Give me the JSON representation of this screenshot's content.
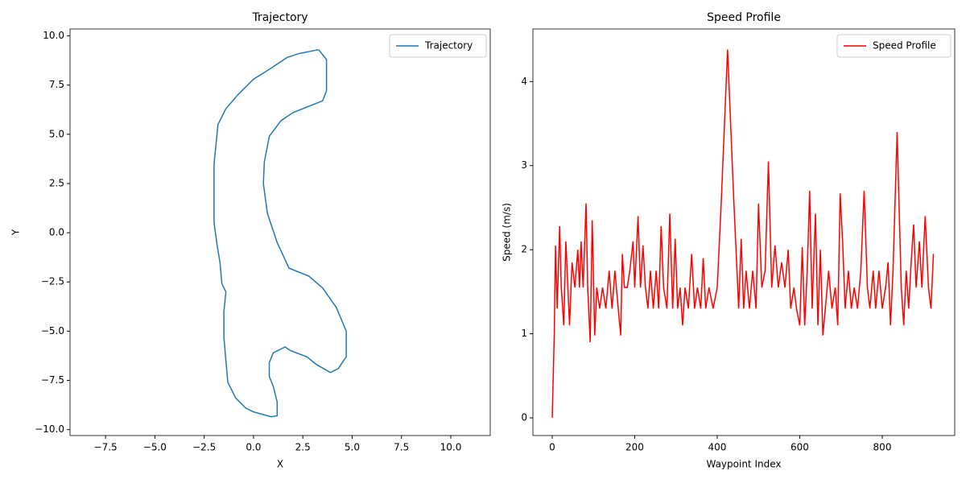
{
  "chart_data": [
    {
      "type": "line",
      "title": "Trajectory",
      "x_label": "X",
      "y_label": "Y",
      "x": [
        3.3,
        3.7,
        3.7,
        3.5,
        2.0,
        1.4,
        0.8,
        0.55,
        0.5,
        0.7,
        1.2,
        1.8,
        2.8,
        3.5,
        4.2,
        4.7,
        4.7,
        4.3,
        3.9,
        3.2,
        2.7,
        1.9,
        1.6,
        1.0,
        0.8,
        0.8,
        1.0,
        1.2,
        1.2,
        0.9,
        0.0,
        -0.4,
        -0.9,
        -1.3,
        -1.4,
        -1.5,
        -1.5,
        -1.4,
        -1.6,
        -1.7,
        -1.85,
        -2.0,
        -2.0,
        -2.0,
        -1.9,
        -1.8,
        -1.4,
        -0.8,
        0.0,
        0.8,
        1.7,
        2.3,
        3.3
      ],
      "series": [
        {
          "name": "Trajectory",
          "color": "#1f77b4",
          "values": [
            9.3,
            8.8,
            7.2,
            6.7,
            6.1,
            5.7,
            4.9,
            3.6,
            2.5,
            1.0,
            -0.5,
            -1.8,
            -2.2,
            -2.8,
            -3.8,
            -5.0,
            -6.3,
            -6.9,
            -7.1,
            -6.7,
            -6.3,
            -6.0,
            -5.8,
            -6.1,
            -6.6,
            -7.3,
            -7.8,
            -8.6,
            -9.3,
            -9.35,
            -9.1,
            -8.9,
            -8.4,
            -7.6,
            -6.5,
            -5.3,
            -4.0,
            -3.0,
            -2.6,
            -1.5,
            -0.6,
            0.5,
            1.0,
            3.5,
            4.5,
            5.5,
            6.3,
            7.0,
            7.8,
            8.3,
            8.9,
            9.1,
            9.3
          ]
        }
      ],
      "xlim": [
        -9.3,
        12.0
      ],
      "ylim": [
        -10.3,
        10.35
      ],
      "xticks": [
        {
          "value": -7.5,
          "label": "−7.5"
        },
        {
          "value": -5,
          "label": "−5.0"
        },
        {
          "value": -2.5,
          "label": "−2.5"
        },
        {
          "value": 0,
          "label": "0.0"
        },
        {
          "value": 2.5,
          "label": "2.5"
        },
        {
          "value": 5,
          "label": "5.0"
        },
        {
          "value": 7.5,
          "label": "7.5"
        },
        {
          "value": 10,
          "label": "10.0"
        }
      ],
      "yticks": [
        {
          "value": -10,
          "label": "−10.0"
        },
        {
          "value": -7.5,
          "label": "−7.5"
        },
        {
          "value": -5,
          "label": "−5.0"
        },
        {
          "value": -2.5,
          "label": "−2.5"
        },
        {
          "value": 0,
          "label": "0.0"
        },
        {
          "value": 2.5,
          "label": "2.5"
        },
        {
          "value": 5,
          "label": "5.0"
        },
        {
          "value": 7.5,
          "label": "7.5"
        },
        {
          "value": 10,
          "label": "10.0"
        }
      ],
      "legend": "upper right"
    },
    {
      "type": "line",
      "title": "Speed Profile",
      "x_label": "Waypoint Index",
      "y_label": "Speed (m/s)",
      "x": [
        0,
        5,
        8,
        12,
        18,
        22,
        28,
        33,
        38,
        42,
        48,
        55,
        62,
        66,
        70,
        75,
        82,
        86,
        92,
        97,
        103,
        108,
        115,
        122,
        130,
        138,
        145,
        152,
        160,
        166,
        170,
        175,
        182,
        188,
        196,
        200,
        208,
        214,
        220,
        226,
        232,
        238,
        245,
        252,
        258,
        264,
        270,
        278,
        285,
        292,
        298,
        304,
        310,
        316,
        322,
        330,
        338,
        345,
        352,
        360,
        366,
        372,
        380,
        390,
        400,
        410,
        425,
        440,
        452,
        458,
        464,
        470,
        478,
        486,
        494,
        500,
        508,
        516,
        524,
        532,
        540,
        548,
        556,
        564,
        572,
        578,
        586,
        592,
        600,
        606,
        612,
        618,
        624,
        630,
        638,
        644,
        650,
        656,
        662,
        670,
        678,
        686,
        692,
        698,
        704,
        710,
        718,
        725,
        732,
        740,
        748,
        756,
        764,
        770,
        778,
        784,
        792,
        800,
        808,
        814,
        820,
        826,
        836,
        846,
        852,
        858,
        864,
        870,
        876,
        882,
        890,
        896,
        904,
        912,
        918,
        924
      ],
      "series": [
        {
          "name": "Speed Profile",
          "color": "#ff0000",
          "values": [
            0,
            1.0,
            2.05,
            1.3,
            2.28,
            1.55,
            1.1,
            2.1,
            1.55,
            1.1,
            1.85,
            1.55,
            2.0,
            1.55,
            2.1,
            1.55,
            2.55,
            1.55,
            0.9,
            2.35,
            0.98,
            1.55,
            1.3,
            1.55,
            1.3,
            1.75,
            1.3,
            1.75,
            1.3,
            0.98,
            1.95,
            1.55,
            1.55,
            1.75,
            2.1,
            1.55,
            2.4,
            1.55,
            2.05,
            1.55,
            1.3,
            1.75,
            1.3,
            1.75,
            1.3,
            2.28,
            1.55,
            1.3,
            2.43,
            1.3,
            2.13,
            1.3,
            1.55,
            1.1,
            1.55,
            1.3,
            1.95,
            1.3,
            1.55,
            1.3,
            1.9,
            1.3,
            1.55,
            1.3,
            1.55,
            2.6,
            4.38,
            2.6,
            1.3,
            2.13,
            1.3,
            1.75,
            1.3,
            1.75,
            1.3,
            2.55,
            1.55,
            1.75,
            3.05,
            1.55,
            2.05,
            1.55,
            1.85,
            1.55,
            2.0,
            1.3,
            1.55,
            1.3,
            1.1,
            2.03,
            1.1,
            1.75,
            2.7,
            1.3,
            2.43,
            1.1,
            2.0,
            0.98,
            1.3,
            1.75,
            1.3,
            1.55,
            1.1,
            2.67,
            2.08,
            1.3,
            1.75,
            1.3,
            1.55,
            1.3,
            1.75,
            2.7,
            1.55,
            1.3,
            1.75,
            1.3,
            1.75,
            1.3,
            1.55,
            1.85,
            1.1,
            1.75,
            3.4,
            1.55,
            1.1,
            1.75,
            1.3,
            1.85,
            2.3,
            1.55,
            2.1,
            1.55,
            2.4,
            1.55,
            1.3,
            1.95
          ]
        }
      ],
      "xlim": [
        -46.8,
        975.6
      ],
      "ylim": [
        -0.21,
        4.625
      ],
      "xticks": [
        0,
        200,
        400,
        600,
        800
      ],
      "yticks": [
        0,
        1,
        2,
        3,
        4
      ],
      "legend": "upper right"
    }
  ]
}
